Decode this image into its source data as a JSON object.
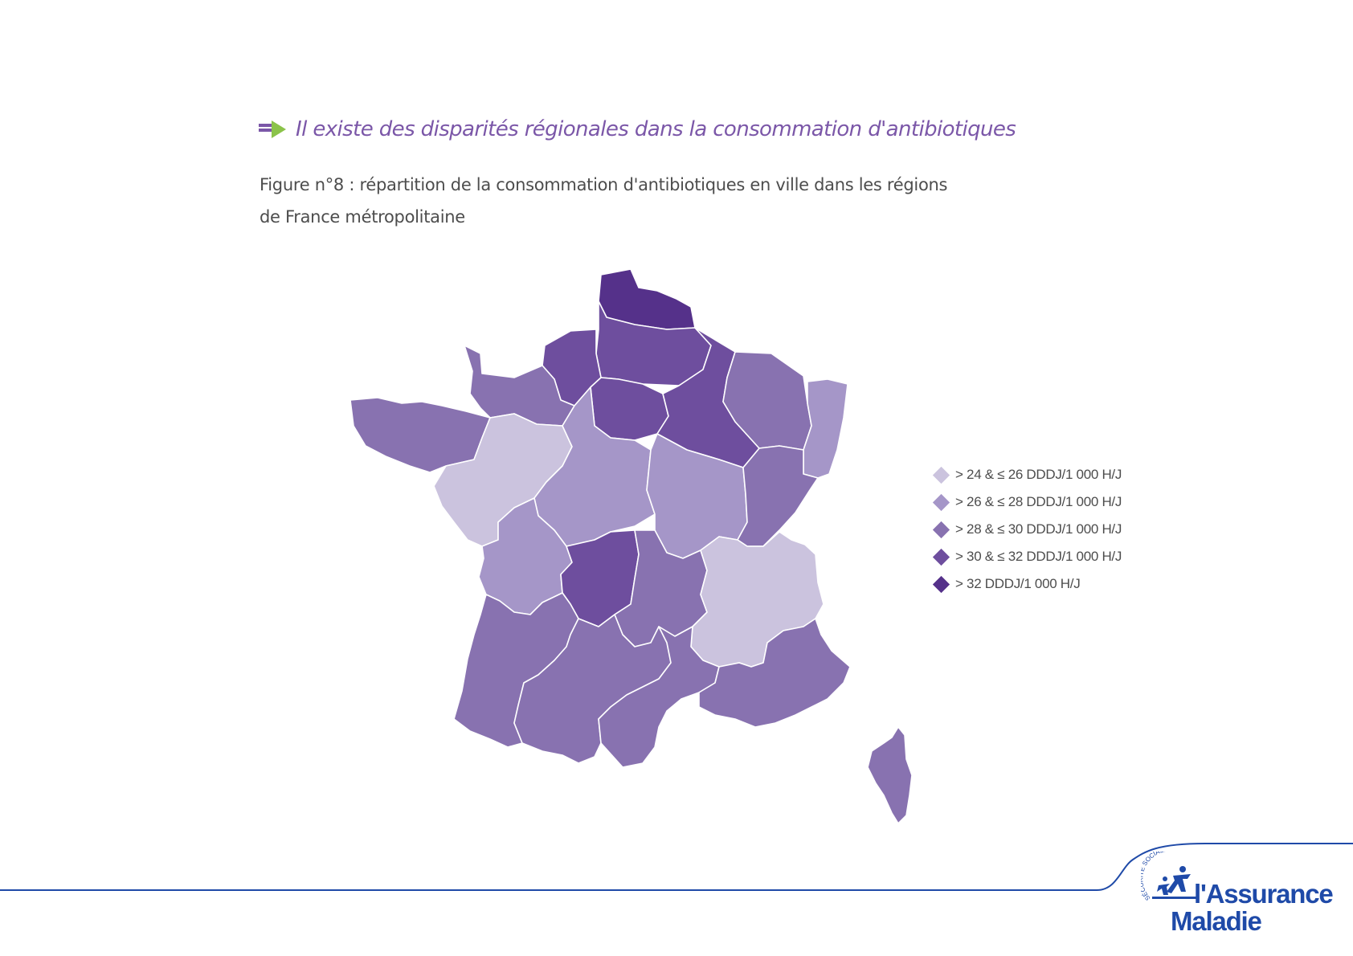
{
  "headline": "Il existe des disparités régionales dans la consommation d'antibiotiques",
  "caption": {
    "line1": "Figure n°8 : répartition de la consommation d'antibiotiques en ville dans les régions",
    "line2": "de France métropolitaine"
  },
  "colors": {
    "class1": "#cbc3de",
    "class2": "#a596c8",
    "class3": "#8872b0",
    "class4": "#6e4e9e",
    "class5": "#55318a",
    "headline": "#7b57a8",
    "arrow": "#8bc34a",
    "brand": "#1f4aa8"
  },
  "legend": [
    {
      "label": "> 24 & ≤ 26 DDDJ/1 000 H/J",
      "class": "class1"
    },
    {
      "label": "> 26 & ≤ 28 DDDJ/1 000 H/J",
      "class": "class2"
    },
    {
      "label": "> 28 & ≤ 30 DDDJ/1 000 H/J",
      "class": "class3"
    },
    {
      "label": "> 30 & ≤ 32 DDDJ/1 000 H/J",
      "class": "class4"
    },
    {
      "label": "> 32 DDDJ/1 000 H/J",
      "class": "class5"
    }
  ],
  "regions": [
    {
      "id": "nord-pas-de-calais",
      "class": "class5"
    },
    {
      "id": "picardie",
      "class": "class4"
    },
    {
      "id": "haute-normandie",
      "class": "class4"
    },
    {
      "id": "ile-de-france",
      "class": "class4"
    },
    {
      "id": "champagne-ardenne",
      "class": "class4"
    },
    {
      "id": "lorraine",
      "class": "class3"
    },
    {
      "id": "alsace",
      "class": "class2"
    },
    {
      "id": "basse-normandie",
      "class": "class3"
    },
    {
      "id": "bretagne",
      "class": "class3"
    },
    {
      "id": "pays-de-la-loire",
      "class": "class1"
    },
    {
      "id": "centre",
      "class": "class2"
    },
    {
      "id": "bourgogne",
      "class": "class2"
    },
    {
      "id": "franche-comte",
      "class": "class3"
    },
    {
      "id": "poitou-charentes",
      "class": "class2"
    },
    {
      "id": "limousin",
      "class": "class4"
    },
    {
      "id": "auvergne",
      "class": "class3"
    },
    {
      "id": "rhone-alpes",
      "class": "class1"
    },
    {
      "id": "aquitaine",
      "class": "class3"
    },
    {
      "id": "midi-pyrenees",
      "class": "class3"
    },
    {
      "id": "languedoc-roussillon",
      "class": "class3"
    },
    {
      "id": "provence-alpes-cote-d-azur",
      "class": "class3"
    },
    {
      "id": "corse",
      "class": "class3"
    }
  ],
  "logo": {
    "seal": "SÉCURITÉ SOCIALE",
    "line1": "l'Assurance",
    "line2": "Maladie"
  }
}
